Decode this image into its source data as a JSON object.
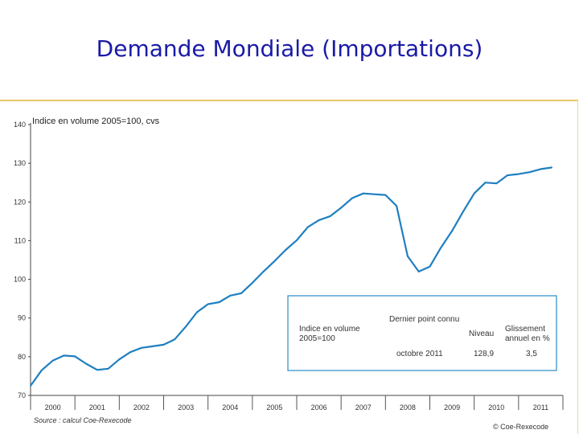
{
  "slide": {
    "title": "Demande Mondiale (Importations)"
  },
  "chart_data": {
    "type": "line",
    "ylabel": "Indice en volume 2005=100, cvs",
    "ylim": [
      70,
      140
    ],
    "yticks": [
      70,
      80,
      90,
      100,
      110,
      120,
      130,
      140
    ],
    "categories": [
      "2000",
      "2001",
      "2002",
      "2003",
      "2004",
      "2005",
      "2006",
      "2007",
      "2008",
      "2009",
      "2010",
      "2011"
    ],
    "grid": false,
    "series": [
      {
        "color": "#1f7fc0",
        "x": [
          2000.0,
          2000.25,
          2000.5,
          2000.75,
          2001.0,
          2001.25,
          2001.5,
          2001.75,
          2002.0,
          2002.25,
          2002.5,
          2002.75,
          2003.0,
          2003.25,
          2003.5,
          2003.75,
          2004.0,
          2004.25,
          2004.5,
          2004.75,
          2005.0,
          2005.25,
          2005.5,
          2005.75,
          2006.0,
          2006.25,
          2006.5,
          2006.75,
          2007.0,
          2007.25,
          2007.5,
          2007.75,
          2008.0,
          2008.25,
          2008.5,
          2008.75,
          2009.0,
          2009.25,
          2009.5,
          2009.75,
          2010.0,
          2010.25,
          2010.5,
          2010.75,
          2011.0,
          2011.25,
          2011.5,
          2011.75
        ],
        "values": [
          72.5,
          76.5,
          79.0,
          80.3,
          80.1,
          78.2,
          76.6,
          76.9,
          79.3,
          81.2,
          82.3,
          82.7,
          83.1,
          84.5,
          87.8,
          91.5,
          93.6,
          94.1,
          95.8,
          96.4,
          99.1,
          102.0,
          104.7,
          107.6,
          110.1,
          113.5,
          115.3,
          116.3,
          118.5,
          121.0,
          122.2,
          122.0,
          121.8,
          119.0,
          106.0,
          102.0,
          103.3,
          108.2,
          112.5,
          117.5,
          122.2,
          125.0,
          124.8,
          126.9,
          127.2,
          127.7,
          128.5,
          128.9
        ]
      }
    ],
    "legend_box": {
      "header": "Dernier point connu",
      "col_level": "Niveau",
      "col_growth": "Glissement annuel en %",
      "label": "Indice en volume 2005=100",
      "period": "octobre 2011",
      "level": "128,9",
      "growth": "3,5"
    },
    "source": "Source : calcul Coe-Rexecode",
    "credit": "© Coe-Rexecode"
  }
}
